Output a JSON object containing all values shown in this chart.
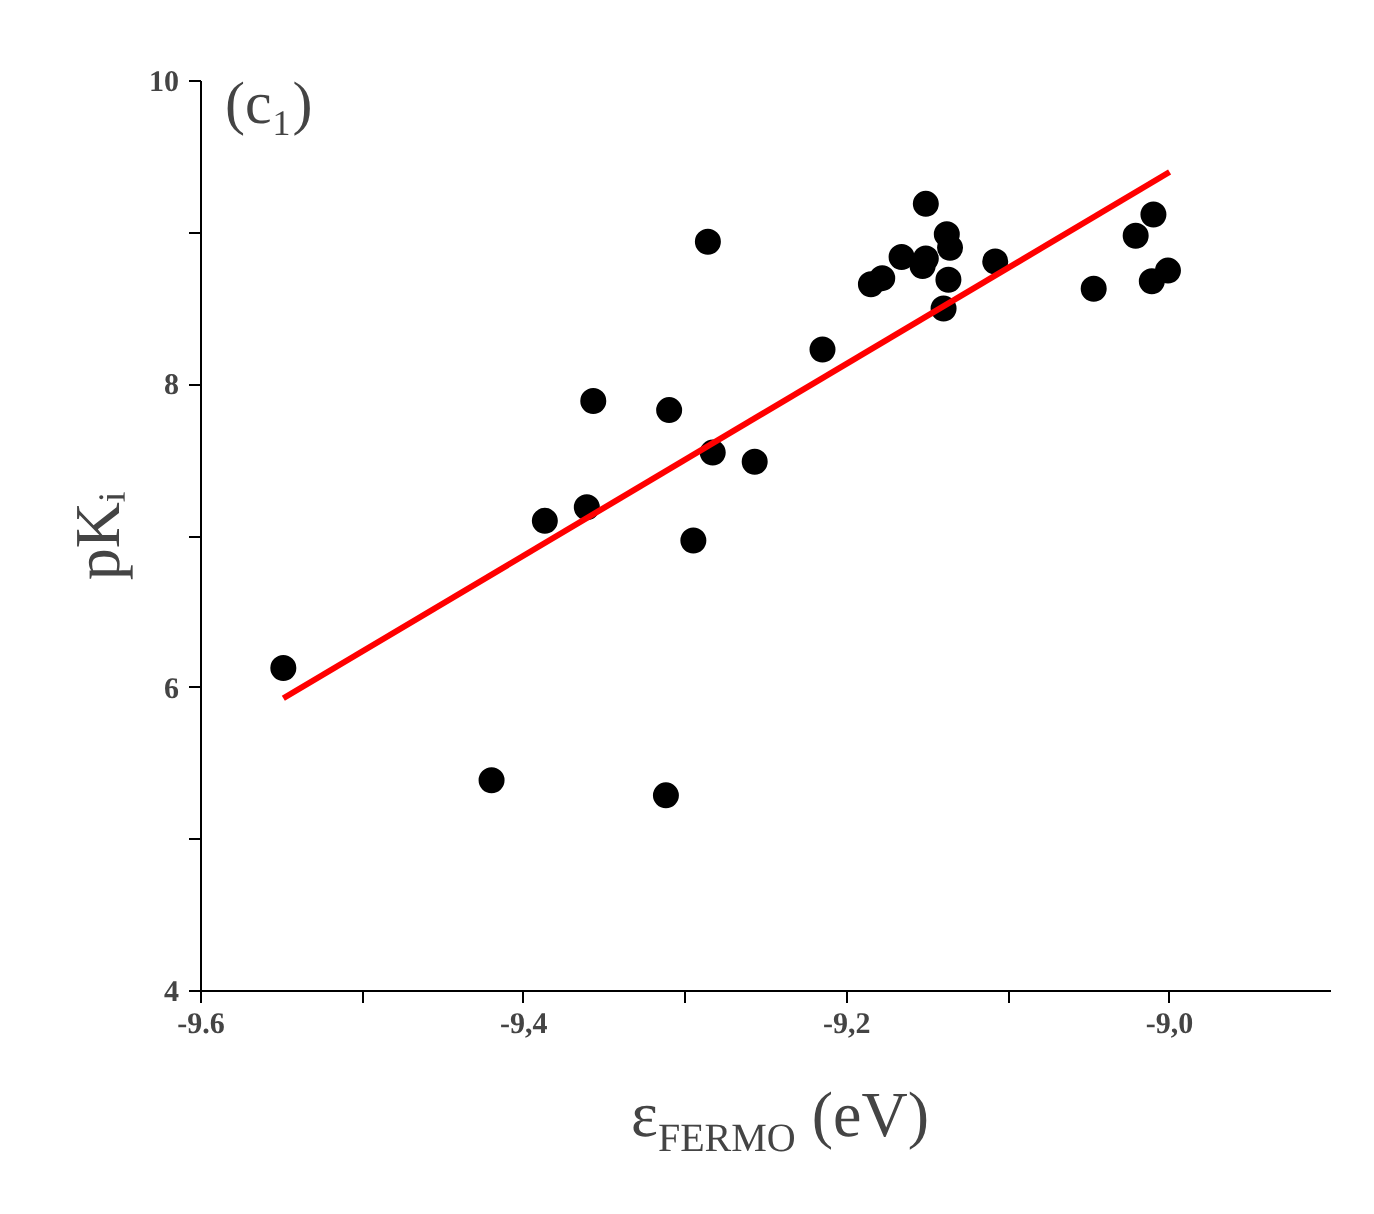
{
  "chart_data": {
    "type": "scatter",
    "xlabel": "ε$_{FERMO}$ (eV)",
    "ylabel": "pKᵢ",
    "annotations": [
      "(c₁)"
    ],
    "xlim": [
      -9.6,
      -8.9
    ],
    "ylim": [
      4,
      10
    ],
    "xticks": [
      {
        "value": -9.6,
        "label": "-9.6"
      },
      {
        "value": -9.5,
        "label": null
      },
      {
        "value": -9.4,
        "label": "-9,4"
      },
      {
        "value": -9.3,
        "label": null
      },
      {
        "value": -9.2,
        "label": "-9,2"
      },
      {
        "value": -9.1,
        "label": null
      },
      {
        "value": -9.0,
        "label": "-9,0"
      }
    ],
    "yticks": [
      4,
      {
        "value": 5,
        "label": null
      },
      6,
      {
        "value": 7,
        "label": null
      },
      8,
      {
        "value": 9,
        "label": null
      },
      10
    ],
    "grid": false,
    "series": [
      {
        "color": "#000000",
        "marker": "circle",
        "x": [
          -9.549,
          -9.42,
          -9.312,
          -9.286,
          -9.357,
          -9.31,
          -9.283,
          -9.257,
          -9.361,
          -9.387,
          -9.295,
          -9.215,
          -9.185,
          -9.178,
          -9.166,
          -9.151,
          -9.153,
          -9.151,
          -9.138,
          -9.136,
          -9.137,
          -9.14,
          -9.108,
          -9.047,
          -9.021,
          -9.01,
          -9.011,
          -9.001
        ],
        "values": [
          6.13,
          5.39,
          5.29,
          8.94,
          7.89,
          7.83,
          7.55,
          7.49,
          7.19,
          7.1,
          6.97,
          8.23,
          8.66,
          8.7,
          8.84,
          9.19,
          8.78,
          8.83,
          8.99,
          8.9,
          8.69,
          8.5,
          8.81,
          8.63,
          8.98,
          9.12,
          8.68,
          8.75
        ]
      },
      {
        "type": "line",
        "marker": "none",
        "color": "#ff0000",
        "x": [
          -9.549,
          -9.0
        ],
        "values": [
          5.93,
          9.4
        ]
      }
    ]
  }
}
